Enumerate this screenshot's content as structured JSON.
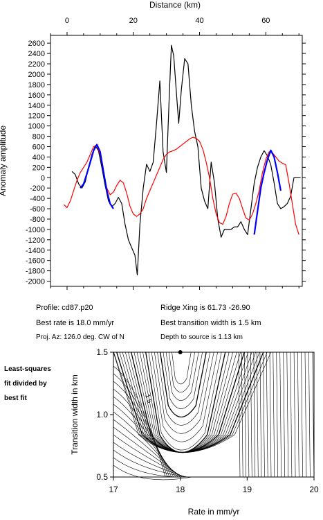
{
  "chart_data": [
    {
      "type": "line",
      "xlabel": "Distance (km)",
      "ylabel": "Anomaly amplitude",
      "xlim": [
        -5,
        71
      ],
      "ylim": [
        -2100,
        2750
      ],
      "xticks": [
        0,
        20,
        40,
        60
      ],
      "yticks": [
        -2000,
        -1800,
        -1600,
        -1400,
        -1200,
        -1000,
        -800,
        -600,
        -400,
        -200,
        0,
        200,
        400,
        600,
        800,
        1000,
        1200,
        1400,
        1600,
        1800,
        2000,
        2200,
        2400,
        2600
      ],
      "series": [
        {
          "color": "#000000",
          "x": [
            1.5,
            2.5,
            3.5,
            4.5,
            5.5,
            6.5,
            7.5,
            8.5,
            9.5,
            10.5,
            11.5,
            12.5,
            13.5,
            14.5,
            15.5,
            16.5,
            17.5,
            18.5,
            19.5,
            20.5,
            21.2,
            22.0,
            23.0,
            24.0,
            25.0,
            26.0,
            27.0,
            28.0,
            29.0,
            30.0,
            30.8,
            31.5,
            32.2,
            33.0,
            33.7,
            34.5,
            35.5,
            36.5,
            37.5,
            38.5,
            39.5,
            40.5,
            41.5,
            42.5,
            43.5,
            44.5,
            45.5,
            46.5,
            47.5,
            48.5,
            49.5,
            50.5,
            51.5,
            52.5,
            53.5,
            54.5,
            55.5,
            56.5,
            57.5,
            58.5,
            59.5,
            60.5,
            61.5,
            62.5,
            63.5,
            64.5,
            65.5,
            66.5,
            67.5,
            68.5,
            69.5,
            70.5
          ],
          "y": [
            120,
            60,
            -120,
            -200,
            -80,
            200,
            450,
            620,
            520,
            200,
            -150,
            -450,
            -560,
            -500,
            -380,
            -500,
            -900,
            -1200,
            -1350,
            -1500,
            -1880,
            -900,
            -200,
            260,
            120,
            300,
            1050,
            1870,
            500,
            100,
            1500,
            2560,
            2350,
            1650,
            1050,
            1700,
            2300,
            2200,
            1400,
            900,
            600,
            -200,
            -450,
            -600,
            300,
            -100,
            -800,
            -1150,
            -1000,
            -1000,
            -1000,
            -950,
            -950,
            -850,
            -1000,
            -1100,
            -600,
            -100,
            200,
            400,
            520,
            420,
            250,
            -100,
            -500,
            -600,
            -560,
            -500,
            -360,
            0,
            0,
            0
          ]
        },
        {
          "color": "#ff0000",
          "x": [
            -1.0,
            0.0,
            1.0,
            2.0,
            3.0,
            4.0,
            5.0,
            6.0,
            7.0,
            8.0,
            9.0,
            10.0,
            11.0,
            12.0,
            13.0,
            14.0,
            15.0,
            16.0,
            17.0,
            18.0,
            19.0,
            20.0,
            21.0,
            22.0,
            23.0,
            24.0,
            25.0,
            26.0,
            27.0,
            28.0,
            29.0,
            30.0,
            31.0,
            32.0,
            33.0,
            34.0,
            35.0,
            36.0,
            37.0,
            38.0,
            39.0,
            40.0,
            41.0,
            42.0,
            43.0,
            44.0,
            45.0,
            46.0,
            47.0,
            48.0,
            49.0,
            50.0,
            51.0,
            52.0,
            53.0,
            54.0,
            55.0,
            56.0,
            57.0,
            58.0,
            59.0,
            60.0,
            61.0,
            62.0,
            63.0,
            64.0,
            65.0,
            66.0,
            67.0,
            68.0,
            69.0,
            70.0
          ],
          "y": [
            -520,
            -580,
            -450,
            -250,
            -50,
            100,
            200,
            300,
            450,
            600,
            620,
            450,
            100,
            -200,
            -330,
            -280,
            -150,
            -50,
            -100,
            -300,
            -550,
            -700,
            -750,
            -700,
            -600,
            -400,
            -250,
            -100,
            50,
            200,
            350,
            450,
            500,
            520,
            550,
            600,
            650,
            700,
            750,
            780,
            760,
            700,
            550,
            300,
            0,
            -400,
            -700,
            -870,
            -900,
            -750,
            -500,
            -320,
            -300,
            -400,
            -600,
            -780,
            -820,
            -700,
            -500,
            -250,
            100,
            350,
            500,
            480,
            400,
            320,
            280,
            250,
            -100,
            -500,
            -900,
            -1100
          ]
        },
        {
          "color": "#0000ff",
          "x": [
            4.0,
            5.0,
            6.0,
            7.0,
            8.0,
            9.0,
            10.0,
            11.0,
            12.0,
            13.0,
            14.0
          ],
          "y": [
            -200,
            -120,
            80,
            300,
            520,
            640,
            500,
            120,
            -250,
            -500,
            -600
          ]
        },
        {
          "color": "#0000ff",
          "x": [
            56.5,
            57.5,
            58.5,
            59.5,
            60.5,
            61.5,
            62.5,
            63.5,
            64.5
          ],
          "y": [
            -1100,
            -650,
            -200,
            100,
            350,
            530,
            400,
            100,
            -250
          ]
        }
      ]
    },
    {
      "type": "contour",
      "xlabel": "Rate in mm/yr",
      "ylabel": "Transition width in km",
      "xlim": [
        17,
        20
      ],
      "ylim": [
        0.5,
        1.5
      ],
      "xticks": [
        17,
        18,
        19,
        20
      ],
      "yticks": [
        0.5,
        1.0,
        1.5
      ],
      "best_fit": {
        "x": 18.0,
        "y": 1.5
      },
      "contour_label": "1.5"
    }
  ],
  "annotations": {
    "profile": "Profile: cd87.p20",
    "best_rate": "Best rate is 18.0 mm/yr",
    "proj_az": "Proj. Az: 126.0 deg. CW of N",
    "ridge_xing": "Ridge Xing is 61.73 -26.90",
    "best_width": "Best transition width is 1.5 km",
    "depth": "Depth to source is   1.13 km"
  },
  "side_note": [
    "Least-squares",
    "fit divided by",
    "best fit"
  ]
}
